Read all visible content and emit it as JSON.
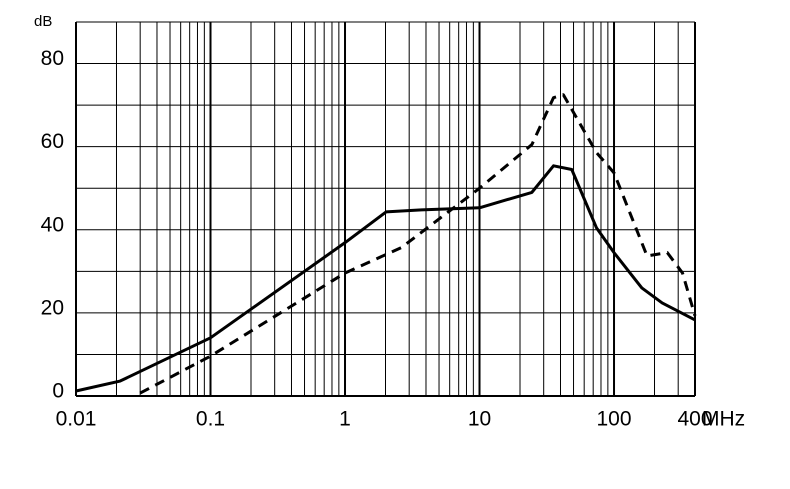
{
  "chart_data": {
    "type": "line",
    "ylabel": "dB",
    "xlabel": "MHz",
    "xscale": "log",
    "minor_grid": true,
    "xlim": [
      0.01,
      400
    ],
    "xticks": [
      0.01,
      0.1,
      1,
      10,
      100,
      400
    ],
    "ylim": [
      0,
      90
    ],
    "yticks": [
      0,
      20,
      40,
      60,
      80
    ],
    "ygrid": [
      0,
      10,
      20,
      30,
      40,
      50,
      60,
      70,
      80,
      90
    ],
    "series": [
      {
        "color": "#000000",
        "style": "solid",
        "x": [
          0.01,
          0.0213,
          0.1,
          1,
          2.02,
          3.7,
          10,
          24.5,
          35.5,
          48.5,
          74,
          100,
          161,
          228,
          400
        ],
        "values": [
          1.2,
          3.6,
          14,
          36.9,
          44.3,
          44.8,
          45.3,
          49,
          55.4,
          54.5,
          40.5,
          34.5,
          26,
          22.4,
          18.3
        ]
      },
      {
        "color": "#000000",
        "style": "dashed",
        "x": [
          0.03,
          0.1,
          1,
          2.62,
          10,
          24.5,
          35.5,
          42,
          74,
          100,
          176,
          249,
          323,
          400
        ],
        "values": [
          0.7,
          9.6,
          29.6,
          35.7,
          50,
          60.5,
          71.8,
          72.5,
          58.6,
          53.7,
          33.7,
          34.5,
          29.6,
          19.3
        ]
      }
    ]
  }
}
